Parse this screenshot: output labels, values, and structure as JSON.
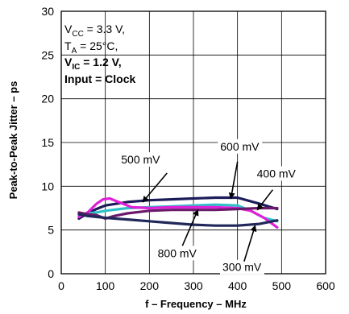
{
  "chart_data": {
    "type": "line",
    "xlabel": "f – Frequency – MHz",
    "ylabel": "Peak-to-Peak Jitter – ps",
    "xlim": [
      0,
      600
    ],
    "ylim": [
      0,
      30
    ],
    "xticks": [
      0,
      100,
      200,
      300,
      400,
      500,
      600
    ],
    "yticks": [
      0,
      5,
      10,
      15,
      20,
      25,
      30
    ],
    "grid": true,
    "conditions": {
      "vcc": {
        "main": "V",
        "sub": "CC",
        "rest": " = 3.3 V,"
      },
      "ta": {
        "main": "T",
        "sub": "A",
        "rest": " = 25°C,"
      },
      "vic": {
        "main": "V",
        "sub": "IC",
        "rest": " = 1.2 V,"
      },
      "input": "Input = Clock"
    },
    "series": [
      {
        "name": "500 mV",
        "color": "#1c1c5a",
        "x": [
          40,
          60,
          80,
          100,
          150,
          200,
          250,
          300,
          350,
          400,
          450,
          490
        ],
        "y": [
          6.3,
          6.9,
          7.4,
          7.8,
          8.2,
          8.4,
          8.5,
          8.6,
          8.7,
          8.7,
          8.0,
          7.4
        ]
      },
      {
        "name": "600 mV",
        "color": "#30c0c8",
        "x": [
          40,
          60,
          80,
          100,
          150,
          200,
          250,
          300,
          350,
          400,
          430,
          460,
          490
        ],
        "y": [
          6.7,
          6.9,
          7.0,
          7.2,
          7.5,
          7.6,
          7.7,
          7.8,
          7.9,
          7.8,
          7.2,
          6.4,
          6.0
        ]
      },
      {
        "name": "400 mV",
        "color": "#e020d8",
        "x": [
          40,
          60,
          80,
          95,
          110,
          130,
          160,
          200,
          250,
          300,
          350,
          400,
          430,
          460,
          490
        ],
        "y": [
          6.5,
          7.0,
          8.0,
          8.5,
          8.6,
          8.2,
          7.6,
          7.5,
          7.6,
          7.6,
          7.6,
          7.5,
          7.2,
          6.4,
          5.3
        ]
      },
      {
        "name": "800 mV",
        "color": "#6a1a6a",
        "x": [
          40,
          60,
          80,
          100,
          120,
          150,
          200,
          250,
          300,
          350,
          400,
          450,
          490
        ],
        "y": [
          7.0,
          6.8,
          6.7,
          6.3,
          6.6,
          6.9,
          7.2,
          7.3,
          7.3,
          7.3,
          7.4,
          7.5,
          7.5
        ]
      },
      {
        "name": "300 mV",
        "color": "#20285a",
        "x": [
          40,
          60,
          80,
          100,
          150,
          200,
          250,
          300,
          350,
          400,
          450,
          490
        ],
        "y": [
          6.8,
          6.6,
          6.5,
          6.4,
          6.2,
          6.0,
          5.8,
          5.6,
          5.5,
          5.5,
          5.7,
          6.1
        ]
      }
    ],
    "annotations": [
      {
        "text": "500 mV",
        "label_x": 180,
        "label_y": 12.6,
        "point_x": 240,
        "point_y": 11.5,
        "arrow_x": 185,
        "arrow_y": 8.2
      },
      {
        "text": "600 mV",
        "label_x": 405,
        "label_y": 14.1,
        "point_x": 400,
        "point_y": 12.8,
        "arrow_x": 385,
        "arrow_y": 8.6
      },
      {
        "text": "400 mV",
        "label_x": 488,
        "label_y": 11.0,
        "point_x": 480,
        "point_y": 9.6,
        "arrow_x": 445,
        "arrow_y": 7.3
      },
      {
        "text": "800 mV",
        "label_x": 263,
        "label_y": 1.9,
        "point_x": 275,
        "point_y": 3.2,
        "arrow_x": 310,
        "arrow_y": 7.3
      },
      {
        "text": "300 mV",
        "label_x": 410,
        "label_y": 0.3,
        "point_x": 415,
        "point_y": 1.4,
        "arrow_x": 440,
        "arrow_y": 5.5
      }
    ]
  }
}
